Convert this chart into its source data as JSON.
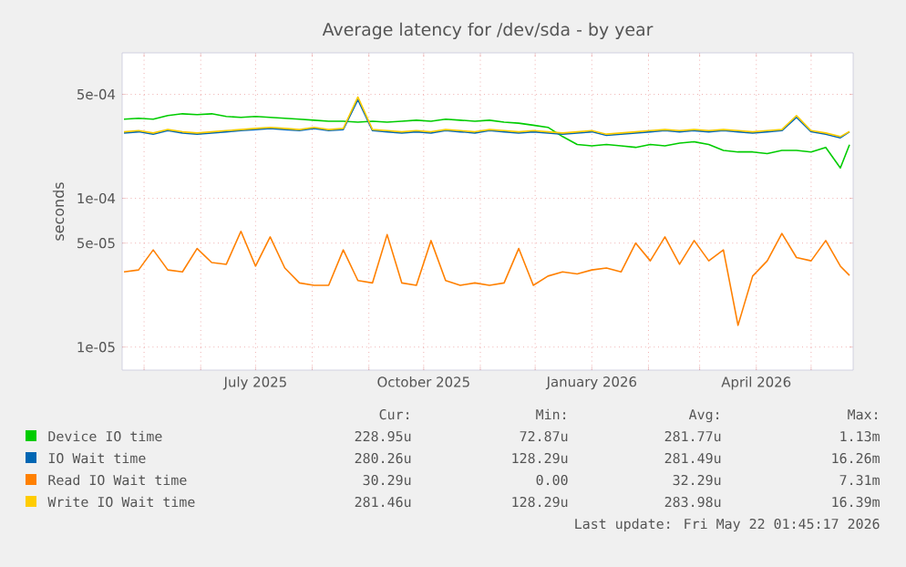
{
  "chart_data": {
    "type": "line",
    "title": "Average latency for /dev/sda - by year",
    "ylabel": "seconds",
    "log": "y",
    "grid": true,
    "legend": "bottom",
    "marker": "none",
    "line_style": "solid",
    "x": [
      "2025-04-20",
      "2025-04-28",
      "2025-05-06",
      "2025-05-14",
      "2025-05-22",
      "2025-05-30",
      "2025-06-07",
      "2025-06-15",
      "2025-06-23",
      "2025-07-01",
      "2025-07-09",
      "2025-07-17",
      "2025-07-25",
      "2025-08-02",
      "2025-08-10",
      "2025-08-18",
      "2025-08-26",
      "2025-09-03",
      "2025-09-11",
      "2025-09-19",
      "2025-09-27",
      "2025-10-05",
      "2025-10-13",
      "2025-10-21",
      "2025-10-29",
      "2025-11-06",
      "2025-11-14",
      "2025-11-22",
      "2025-11-30",
      "2025-12-08",
      "2025-12-16",
      "2025-12-24",
      "2026-01-01",
      "2026-01-09",
      "2026-01-17",
      "2026-01-25",
      "2026-02-02",
      "2026-02-10",
      "2026-02-18",
      "2026-02-26",
      "2026-03-06",
      "2026-03-14",
      "2026-03-22",
      "2026-03-30",
      "2026-04-07",
      "2026-04-15",
      "2026-04-23",
      "2026-05-01",
      "2026-05-09",
      "2026-05-17",
      "2026-05-22"
    ],
    "xlim": [
      "2025-04-19",
      "2026-05-24"
    ],
    "xticks": [
      {
        "value": "2025-05-01",
        "label": null
      },
      {
        "value": "2025-06-01",
        "label": null
      },
      {
        "value": "2025-07-01",
        "label": "July 2025"
      },
      {
        "value": "2025-08-01",
        "label": null
      },
      {
        "value": "2025-09-01",
        "label": null
      },
      {
        "value": "2025-10-01",
        "label": "October 2025"
      },
      {
        "value": "2025-11-01",
        "label": null
      },
      {
        "value": "2025-12-01",
        "label": null
      },
      {
        "value": "2026-01-01",
        "label": "January 2026"
      },
      {
        "value": "2026-02-01",
        "label": null
      },
      {
        "value": "2026-03-01",
        "label": null
      },
      {
        "value": "2026-04-01",
        "label": "April 2026"
      },
      {
        "value": "2026-05-01",
        "label": null
      }
    ],
    "ylim": [
      7e-06,
      0.00095
    ],
    "yticks": [
      {
        "value": 1e-05,
        "label": "1e-05"
      },
      {
        "value": 5e-05,
        "label": "5e-05"
      },
      {
        "value": 0.0001,
        "label": "1e-04"
      },
      {
        "value": 0.0005,
        "label": "5e-04"
      }
    ],
    "series": [
      {
        "name": "Device IO time",
        "color": "#00cc00",
        "values": [
          0.00034,
          0.000345,
          0.00034,
          0.00036,
          0.00037,
          0.000365,
          0.00037,
          0.000355,
          0.00035,
          0.000355,
          0.00035,
          0.000345,
          0.00034,
          0.000335,
          0.00033,
          0.00033,
          0.000325,
          0.00033,
          0.000325,
          0.00033,
          0.000335,
          0.00033,
          0.00034,
          0.000335,
          0.00033,
          0.000335,
          0.000325,
          0.00032,
          0.00031,
          0.0003,
          0.00026,
          0.00023,
          0.000225,
          0.00023,
          0.000225,
          0.00022,
          0.00023,
          0.000225,
          0.000235,
          0.00024,
          0.00023,
          0.00021,
          0.000205,
          0.000205,
          0.0002,
          0.00021,
          0.00021,
          0.000205,
          0.00022,
          0.00016,
          0.000229
        ]
      },
      {
        "name": "IO Wait time",
        "color": "#0066b3",
        "values": [
          0.000275,
          0.00028,
          0.00027,
          0.000285,
          0.000275,
          0.00027,
          0.000275,
          0.00028,
          0.000285,
          0.00029,
          0.000295,
          0.00029,
          0.000285,
          0.000295,
          0.000285,
          0.00029,
          0.00046,
          0.000285,
          0.00028,
          0.000275,
          0.00028,
          0.000275,
          0.000285,
          0.00028,
          0.000275,
          0.000285,
          0.00028,
          0.000275,
          0.00028,
          0.000275,
          0.00027,
          0.000275,
          0.00028,
          0.000265,
          0.00027,
          0.000275,
          0.00028,
          0.000285,
          0.00028,
          0.000285,
          0.00028,
          0.000285,
          0.00028,
          0.000275,
          0.00028,
          0.000285,
          0.00035,
          0.00028,
          0.00027,
          0.000255,
          0.00028
        ]
      },
      {
        "name": "Read IO Wait time",
        "color": "#ff8000",
        "values": [
          3.2e-05,
          3.3e-05,
          4.5e-05,
          3.3e-05,
          3.2e-05,
          4.6e-05,
          3.7e-05,
          3.6e-05,
          6e-05,
          3.5e-05,
          5.5e-05,
          3.4e-05,
          2.7e-05,
          2.6e-05,
          2.6e-05,
          4.5e-05,
          2.8e-05,
          2.7e-05,
          5.7e-05,
          2.7e-05,
          2.6e-05,
          5.2e-05,
          2.8e-05,
          2.6e-05,
          2.7e-05,
          2.6e-05,
          2.7e-05,
          4.6e-05,
          2.6e-05,
          3e-05,
          3.2e-05,
          3.1e-05,
          3.3e-05,
          3.4e-05,
          3.2e-05,
          5e-05,
          3.8e-05,
          5.5e-05,
          3.6e-05,
          5.2e-05,
          3.8e-05,
          4.5e-05,
          1.4e-05,
          3e-05,
          3.8e-05,
          5.8e-05,
          4e-05,
          3.8e-05,
          5.2e-05,
          3.5e-05,
          3.03e-05
        ]
      },
      {
        "name": "Write IO Wait time",
        "color": "#ffcc00",
        "values": [
          0.00028,
          0.000285,
          0.000275,
          0.00029,
          0.00028,
          0.000275,
          0.00028,
          0.000285,
          0.00029,
          0.000295,
          0.0003,
          0.000295,
          0.00029,
          0.0003,
          0.00029,
          0.000295,
          0.00048,
          0.00029,
          0.000285,
          0.00028,
          0.000285,
          0.00028,
          0.00029,
          0.000285,
          0.00028,
          0.00029,
          0.000285,
          0.00028,
          0.000285,
          0.00028,
          0.000275,
          0.00028,
          0.000285,
          0.00027,
          0.000275,
          0.00028,
          0.000285,
          0.00029,
          0.000285,
          0.00029,
          0.000285,
          0.00029,
          0.000285,
          0.00028,
          0.000285,
          0.00029,
          0.00036,
          0.000285,
          0.000275,
          0.00026,
          0.000281
        ]
      }
    ],
    "annotations": [
      "Cur:",
      "Min:",
      "Avg:",
      "Max:",
      "228.95u",
      "72.87u",
      "281.77u",
      "1.13m",
      "280.26u",
      "128.29u",
      "281.49u",
      "16.26m",
      "30.29u",
      "0.00",
      "32.29u",
      "7.31m",
      "281.46u",
      "128.29u",
      "283.98u",
      "16.39m",
      "Last update: Fri May 22 01:45:17 2026"
    ]
  }
}
